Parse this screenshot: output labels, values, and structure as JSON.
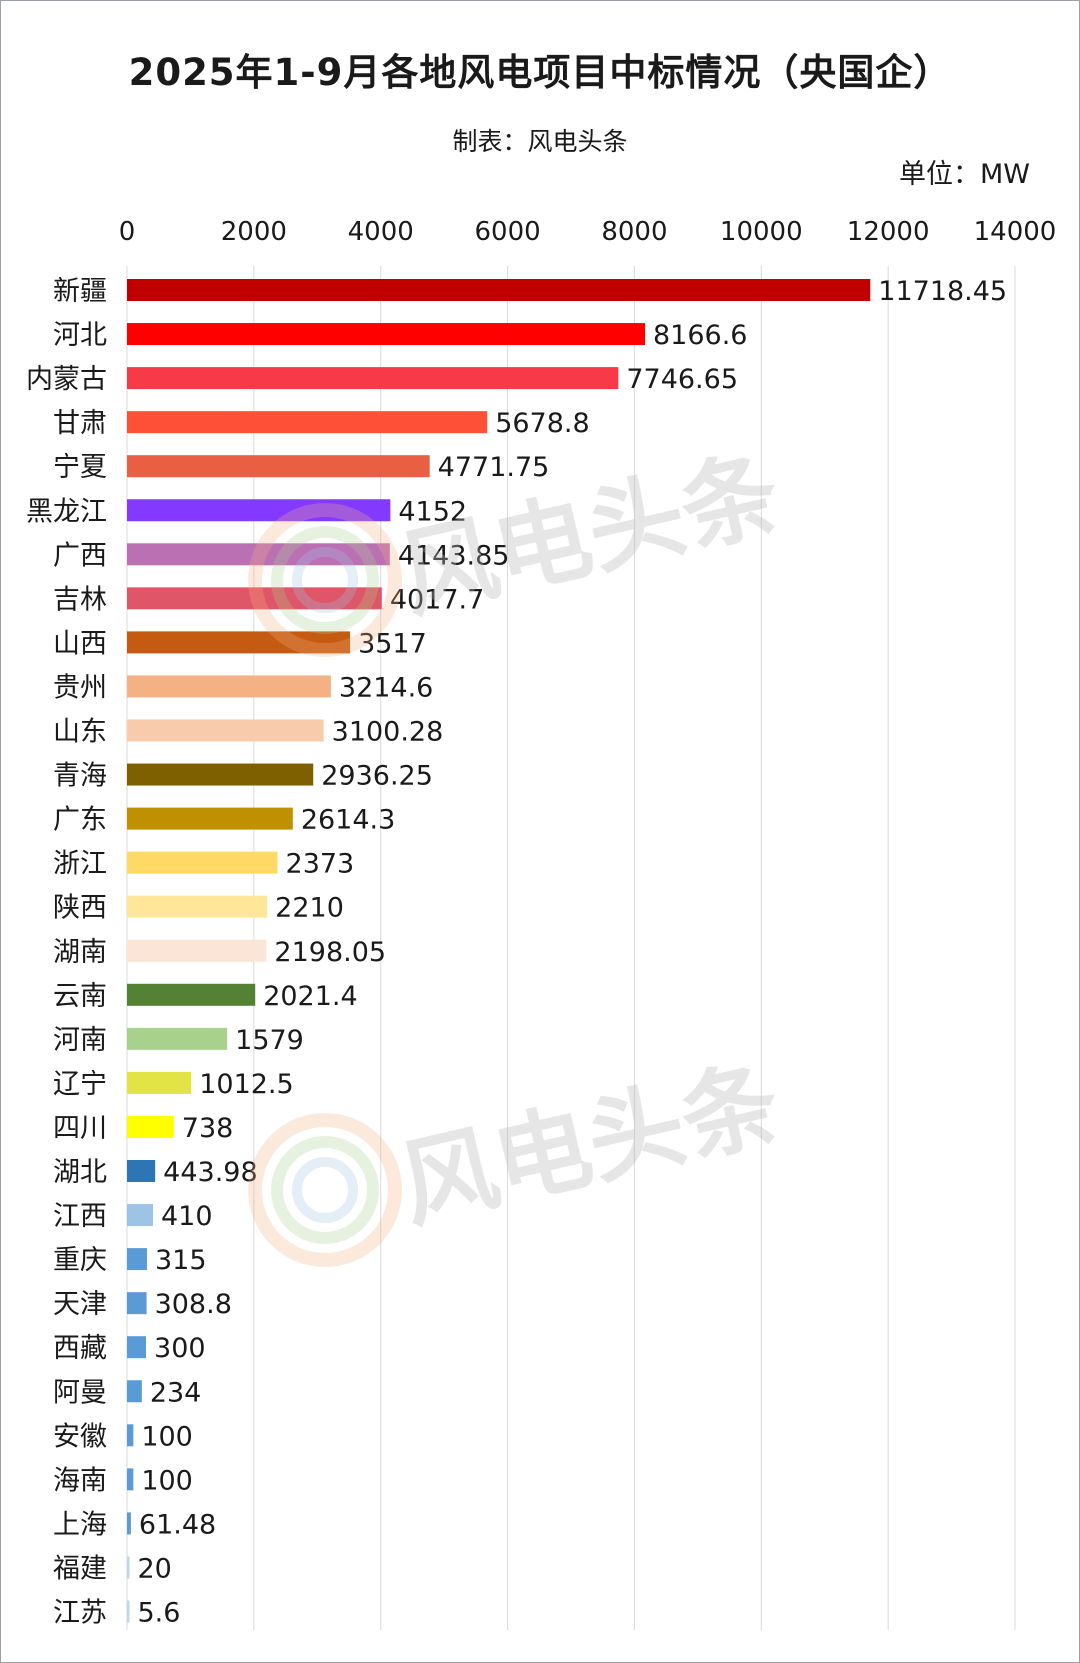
{
  "title": "2025年1-9月各地风电项目中标情况（央国企）",
  "subtitle": "制表：风电头条",
  "unit": "单位：MW",
  "watermark": "风电头条",
  "chart_data": {
    "type": "bar",
    "orientation": "horizontal",
    "title": "2025年1-9月各地风电项目中标情况（央国企）",
    "subtitle": "制表：风电头条",
    "unit": "单位：MW",
    "xlim": [
      0,
      14000
    ],
    "xticks": [
      "0",
      "2000",
      "4000",
      "6000",
      "8000",
      "10000",
      "12000",
      "14000"
    ],
    "x_axis_position": "top",
    "grid": "vertical",
    "categories": [
      "新疆",
      "河北",
      "内蒙古",
      "甘肃",
      "宁夏",
      "黑龙江",
      "广西",
      "吉林",
      "山西",
      "贵州",
      "山东",
      "青海",
      "广东",
      "浙江",
      "陕西",
      "湖南",
      "云南",
      "河南",
      "辽宁",
      "四川",
      "湖北",
      "江西",
      "重庆",
      "天津",
      "西藏",
      "阿曼",
      "安徽",
      "海南",
      "上海",
      "福建",
      "江苏"
    ],
    "values": [
      11718.45,
      8166.6,
      7746.65,
      5678.8,
      4771.75,
      4152,
      4143.85,
      4017.7,
      3517,
      3214.6,
      3100.28,
      2936.25,
      2614.3,
      2373,
      2210,
      2198.05,
      2021.4,
      1579,
      1012.5,
      738,
      443.98,
      410,
      315,
      308.8,
      300,
      234,
      100,
      100,
      61.48,
      20,
      5.6
    ],
    "data_labels": [
      "11718.45",
      "8166.6",
      "7746.65",
      "5678.8",
      "4771.75",
      "4152",
      "4143.85",
      "4017.7",
      "3517",
      "3214.6",
      "3100.28",
      "2936.25",
      "2614.3",
      "2373",
      "2210",
      "2198.05",
      "2021.4",
      "1579",
      "1012.5",
      "738",
      "443.98",
      "410",
      "315",
      "308.8",
      "300",
      "234",
      "100",
      "100",
      "61.48",
      "20",
      "5.6"
    ],
    "colors": [
      "#c00000",
      "#ff0000",
      "#f83a48",
      "#fe5037",
      "#e85f44",
      "#8439fe",
      "#bc70b4",
      "#de5667",
      "#c55a11",
      "#f4b183",
      "#f8cbad",
      "#7f6000",
      "#bf9000",
      "#ffd966",
      "#ffe699",
      "#fbe5d6",
      "#548235",
      "#a9d18e",
      "#e2e445",
      "#ffff00",
      "#2e75b6",
      "#9dc3e6",
      "#5b9bd5",
      "#5b9bd5",
      "#5b9bd5",
      "#5b9bd5",
      "#5b9bd5",
      "#5b9bd5",
      "#5b9bd5",
      "#bdd7ee",
      "#bdd7ee"
    ]
  }
}
